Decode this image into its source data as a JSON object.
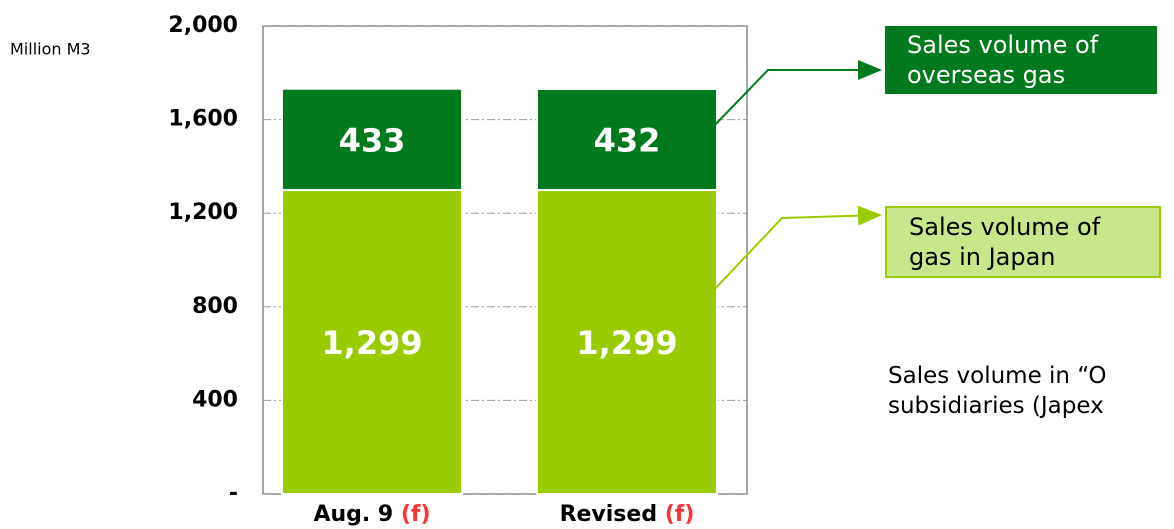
{
  "chart_data": {
    "type": "stacked_bar",
    "y_unit": "Million M3",
    "categories": [
      "Aug. 9",
      "Revised"
    ],
    "category_note": "(f)",
    "series": [
      {
        "name": "Sales volume of gas in Japan",
        "color": "#99cc00",
        "values": [
          1299,
          1299
        ],
        "value_labels": [
          "1,299",
          "1,299"
        ]
      },
      {
        "name": "Sales volume of overseas gas",
        "color": "#007a1c",
        "values": [
          433,
          432
        ]
      }
    ],
    "ylim": [
      0,
      2000
    ],
    "yticks": [
      {
        "value": 0,
        "label": "-"
      },
      400,
      800,
      {
        "value": 1200,
        "label": "1,200"
      },
      {
        "value": 1600,
        "label": "1,600"
      },
      {
        "value": 2000,
        "label": "2,000"
      }
    ],
    "grid": true,
    "annotation": [
      "Sales volume in “O",
      "subsidiaries (Japex"
    ]
  }
}
